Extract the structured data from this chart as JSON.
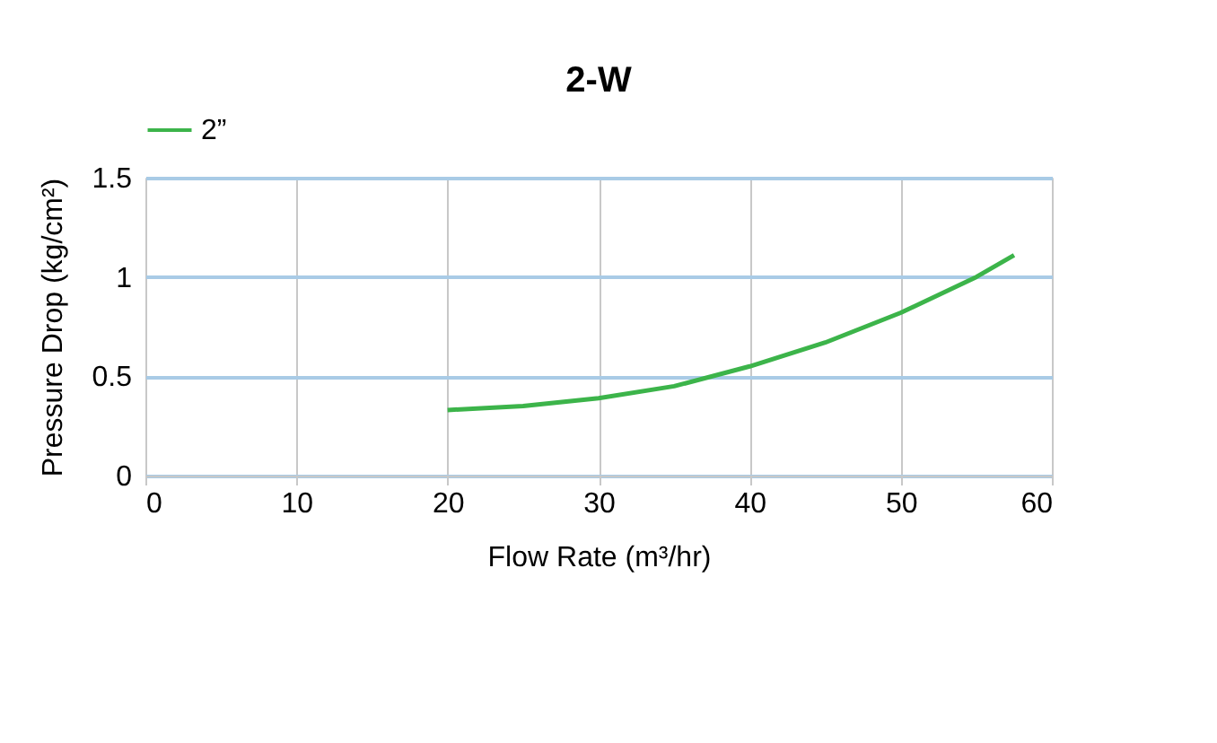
{
  "chart_data": {
    "type": "line",
    "title": "2-W",
    "xlabel": "Flow Rate (m³/hr)",
    "ylabel": "Pressure Drop (kg/cm²)",
    "xlim": [
      0,
      60
    ],
    "xticks": [
      0,
      10,
      20,
      30,
      40,
      50,
      60
    ],
    "ylim": [
      0,
      1.5
    ],
    "yticks": [
      0,
      0.5,
      1,
      1.5
    ],
    "grid": true,
    "legend": "top",
    "marker": "none",
    "line_style": "solid",
    "series": [
      {
        "name": "2”",
        "color": "#3cb44a",
        "x": [
          20,
          25,
          30,
          35,
          40,
          45,
          50,
          55,
          57.5
        ],
        "values": [
          0.33,
          0.35,
          0.39,
          0.45,
          0.55,
          0.67,
          0.82,
          1.0,
          1.11
        ]
      }
    ]
  }
}
